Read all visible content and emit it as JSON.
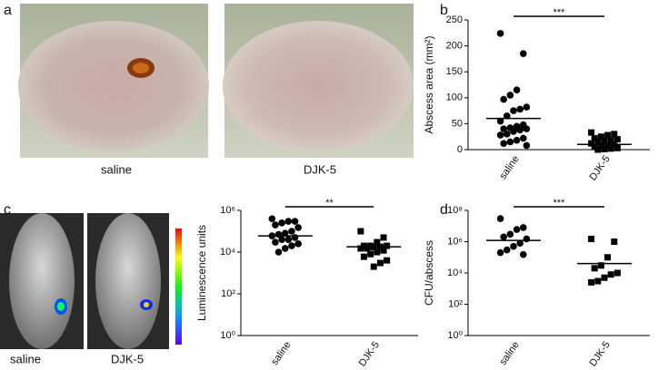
{
  "panels": {
    "a": {
      "label": "a",
      "captions": [
        "saline",
        "DJK-5"
      ]
    },
    "b": {
      "label": "b"
    },
    "c": {
      "label": "c",
      "captions": [
        "saline",
        "DJK-5"
      ]
    },
    "d": {
      "label": "d"
    }
  },
  "chart_data": [
    {
      "type": "strip",
      "ylabel": "Abscess area (mm²)",
      "categories": [
        "saline",
        "DJK-5"
      ],
      "markers": [
        "circle",
        "square"
      ],
      "color": "#000000",
      "values": [
        [
          224,
          185,
          115,
          105,
          97,
          82,
          78,
          75,
          65,
          55,
          48,
          45,
          42,
          40,
          40,
          38,
          35,
          30,
          28,
          22,
          18,
          15,
          12,
          8
        ],
        [
          33,
          30,
          28,
          25,
          22,
          20,
          18,
          17,
          15,
          12,
          10,
          8,
          7,
          5,
          3,
          2,
          1,
          0
        ]
      ],
      "means": [
        60,
        10
      ],
      "significance": "***",
      "ylim": [
        0,
        250
      ],
      "yticks": [
        0,
        50,
        100,
        150,
        200,
        250
      ],
      "log": false
    },
    {
      "type": "strip",
      "ylabel": "Luminescence units",
      "categories": [
        "saline",
        "DJK-5"
      ],
      "markers": [
        "circle",
        "square"
      ],
      "color": "#000000",
      "values": [
        [
          400000,
          300000,
          300000,
          250000,
          200000,
          150000,
          100000,
          80000,
          70000,
          60000,
          50000,
          40000,
          40000,
          30000,
          25000,
          20000,
          15000,
          10000
        ],
        [
          100000,
          50000,
          30000,
          20000,
          20000,
          20000,
          18000,
          17000,
          15000,
          15000,
          12000,
          10000,
          8000,
          6000,
          4000,
          3000,
          2000
        ]
      ],
      "means": [
        60000,
        18000
      ],
      "significance": "**",
      "ylim": [
        1,
        1000000
      ],
      "log": true,
      "yticks": [
        {
          "value": 1,
          "label": "10⁰"
        },
        {
          "value": 100,
          "label": "10²"
        },
        {
          "value": 10000,
          "label": "10⁴"
        },
        {
          "value": 1000000,
          "label": "10⁶"
        }
      ]
    },
    {
      "type": "strip",
      "ylabel": "CFU/abscess",
      "categories": [
        "saline",
        "DJK-5"
      ],
      "markers": [
        "circle",
        "square"
      ],
      "color": "#000000",
      "values": [
        [
          30000000,
          8000000,
          6000000,
          3000000,
          2000000,
          1500000,
          800000,
          500000,
          300000,
          200000,
          150000
        ],
        [
          1500000,
          1000000,
          100000,
          30000,
          20000,
          10000,
          8000,
          5000,
          3000,
          2500
        ]
      ],
      "means": [
        1200000,
        40000
      ],
      "significance": "***",
      "ylim": [
        1,
        100000000
      ],
      "log": true,
      "yticks": [
        {
          "value": 1,
          "label": "10⁰"
        },
        {
          "value": 100,
          "label": "10²"
        },
        {
          "value": 10000,
          "label": "10⁴"
        },
        {
          "value": 1000000,
          "label": "10⁶"
        },
        {
          "value": 100000000,
          "label": "10⁸"
        }
      ]
    }
  ]
}
